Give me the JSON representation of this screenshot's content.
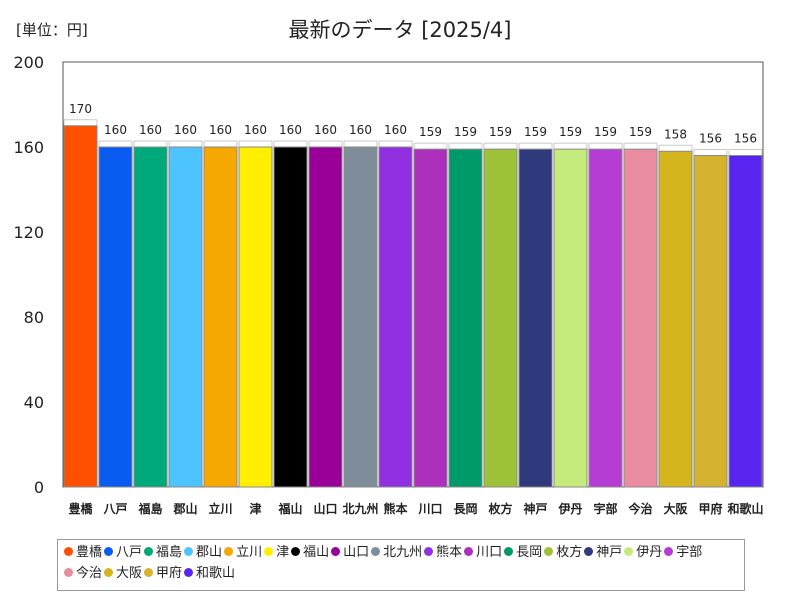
{
  "unit_label": "[単位：円]",
  "chart_data": {
    "type": "bar",
    "title": "最新のデータ [2025/4]",
    "xlabel": "",
    "ylabel": "",
    "ylim": [
      0,
      200
    ],
    "yticks": [
      0,
      40,
      80,
      120,
      160,
      200
    ],
    "grid": false,
    "legend_position": "bottom",
    "categories": [
      "豊橋",
      "八戸",
      "福島",
      "郡山",
      "立川",
      "津",
      "福山",
      "山口",
      "北九州",
      "熊本",
      "川口",
      "長岡",
      "枚方",
      "神戸",
      "伊丹",
      "宇部",
      "今治",
      "大阪",
      "甲府",
      "和歌山"
    ],
    "values": [
      170,
      160,
      160,
      160,
      160,
      160,
      160,
      160,
      160,
      160,
      159,
      159,
      159,
      159,
      159,
      159,
      159,
      158,
      156,
      156
    ],
    "colors": [
      "#ff4f00",
      "#0a5cf0",
      "#00a97a",
      "#4dc3ff",
      "#f6a700",
      "#ffee00",
      "#000000",
      "#980097",
      "#7f8c99",
      "#9130e0",
      "#ad30bd",
      "#009a6a",
      "#9dc137",
      "#2f3a7c",
      "#c5eb7d",
      "#b63dd4",
      "#e98ca0",
      "#d4b51d",
      "#d4b330",
      "#5725ee"
    ]
  }
}
